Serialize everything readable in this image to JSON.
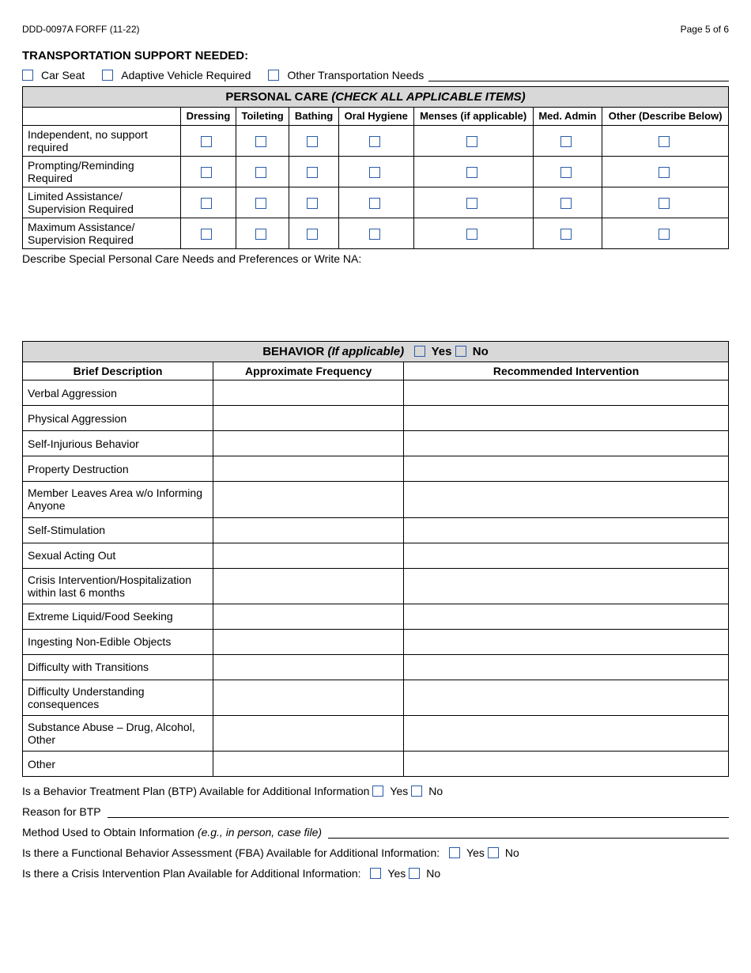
{
  "header": {
    "form_id": "DDD-0097A FORFF (11-22)",
    "page": "Page 5 of 6"
  },
  "transport": {
    "title": "TRANSPORTATION SUPPORT NEEDED:",
    "options": [
      "Car Seat",
      "Adaptive Vehicle Required",
      "Other Transportation Needs"
    ]
  },
  "personal_care": {
    "title_a": "PERSONAL CARE ",
    "title_b": "(CHECK ALL APPLICABLE ITEMS)",
    "columns": [
      "Dressing",
      "Toileting",
      "Bathing",
      "Oral Hygiene",
      "Menses (if applicable)",
      "Med. Admin",
      "Other (Describe Below)"
    ],
    "rows": [
      "Independent, no support required",
      "Prompting/Reminding Required",
      "Limited Assistance/ Supervision Required",
      "Maximum Assistance/ Supervision Required"
    ],
    "describe_label": "Describe Special Personal Care Needs and Preferences or Write NA:"
  },
  "behavior": {
    "title_a": "BEHAVIOR ",
    "title_b": "(If applicable)",
    "yes": "Yes",
    "no": "No",
    "columns": [
      "Brief Description",
      "Approximate Frequency",
      "Recommended Intervention"
    ],
    "rows": [
      "Verbal Aggression",
      "Physical Aggression",
      "Self-Injurious Behavior",
      "Property Destruction",
      "Member Leaves Area w/o Informing Anyone",
      "Self-Stimulation",
      "Sexual Acting Out",
      "Crisis Intervention/Hospitalization within last 6 months",
      "Extreme Liquid/Food Seeking",
      "Ingesting Non-Edible Objects",
      "Difficulty with Transitions",
      "Difficulty Understanding consequences",
      "Substance Abuse – Drug, Alcohol, Other",
      "Other"
    ]
  },
  "questions": {
    "btp": "Is a Behavior Treatment Plan (BTP) Available for Additional Information",
    "reason_btp": "Reason for BTP",
    "method_a": "Method Used to Obtain Information ",
    "method_b": "(e.g., in person, case file)",
    "fba": "Is there a Functional Behavior Assessment (FBA) Available for Additional Information:",
    "crisis": "Is there a Crisis Intervention Plan Available for Additional Information:",
    "yes": "Yes",
    "no": "No"
  }
}
